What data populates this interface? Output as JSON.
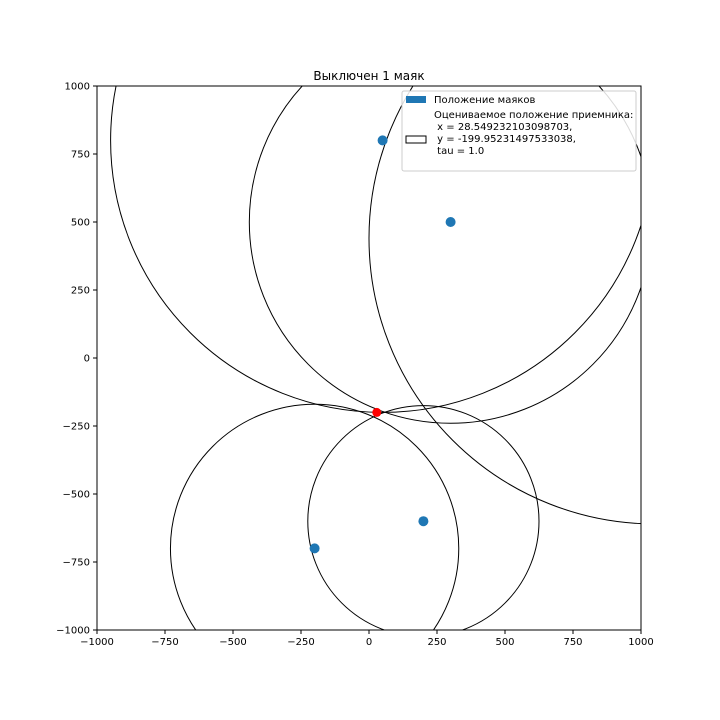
{
  "chart_data": {
    "type": "scatter",
    "title": "Выключен 1 маяк",
    "xlabel": "",
    "ylabel": "",
    "xlim": [
      -1000,
      1000
    ],
    "ylim": [
      -1000,
      1000
    ],
    "x_ticks": [
      -1000,
      -750,
      -500,
      -250,
      0,
      250,
      500,
      750,
      1000
    ],
    "y_ticks": [
      -1000,
      -750,
      -500,
      -250,
      0,
      250,
      500,
      750,
      1000
    ],
    "x_tick_labels": [
      "−1000",
      "−750",
      "−500",
      "−250",
      "0",
      "250",
      "500",
      "750",
      "1000"
    ],
    "y_tick_labels": [
      "−1000",
      "−750",
      "−500",
      "−250",
      "0",
      "250",
      "500",
      "750",
      "1000"
    ],
    "grid": false,
    "legend_placement": "top-right",
    "beacons": {
      "name": "Положение маяков",
      "color": "#1f77b4",
      "points": [
        [
          50,
          800
        ],
        [
          300,
          500
        ],
        [
          200,
          -600
        ],
        [
          -200,
          -700
        ]
      ]
    },
    "receiver": {
      "x": 28.549232103098703,
      "y": -199.95231497533038,
      "color": "#ff0000"
    },
    "circles": [
      {
        "cx": 50,
        "cy": 800,
        "r": 1000
      },
      {
        "cx": 300,
        "cy": 500,
        "r": 740
      },
      {
        "cx": 200,
        "cy": -600,
        "r": 425
      },
      {
        "cx": -200,
        "cy": -700,
        "r": 530
      },
      {
        "cx": 1050,
        "cy": 440,
        "r": 1050
      }
    ],
    "legend": [
      {
        "label": "Положение маяков",
        "style": "filled",
        "color": "#1f77b4"
      },
      {
        "label_lines": [
          "Оцениваемое положение приемника:",
          " x = 28.549232103098703,",
          " y = -199.95231497533038,",
          " tau = 1.0"
        ],
        "style": "empty"
      }
    ]
  }
}
